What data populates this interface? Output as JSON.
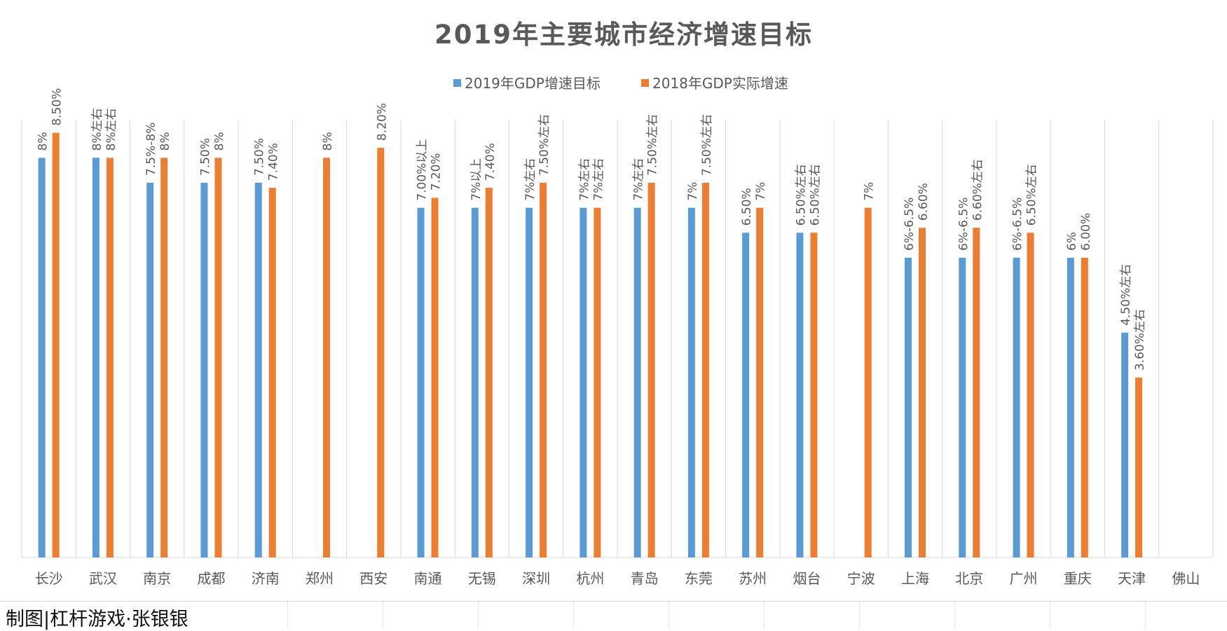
{
  "chart_data": {
    "type": "bar",
    "title": "2019年主要城市经济增速目标",
    "categories": [
      "长沙",
      "武汉",
      "南京",
      "成都",
      "济南",
      "郑州",
      "西安",
      "南通",
      "无锡",
      "深圳",
      "杭州",
      "青岛",
      "东莞",
      "苏州",
      "烟台",
      "宁波",
      "上海",
      "北京",
      "广州",
      "重庆",
      "天津",
      "佛山"
    ],
    "series": [
      {
        "name": "2019年GDP增速目标",
        "color": "#5B9BD5",
        "values": [
          8,
          8,
          7.5,
          7.5,
          7.5,
          null,
          null,
          7,
          7,
          7,
          7,
          7,
          7,
          6.5,
          6.5,
          null,
          6,
          6,
          6,
          6,
          4.5,
          null
        ],
        "labels": [
          "8%",
          "8%左右",
          "7.5%-8%",
          "7.50%",
          "7.50%",
          "",
          "",
          "7.00%以上",
          "7%以上",
          "7%左右",
          "7%左右",
          "7%左右",
          "7%",
          "6.50%",
          "6.50%左右",
          "",
          "6%-6.5%",
          "6%-6.5%",
          "6%-6.5%",
          "6%",
          "4.50%左右",
          ""
        ]
      },
      {
        "name": "2018年GDP实际增速",
        "color": "#ED7D31",
        "values": [
          8.5,
          8,
          8,
          8,
          7.4,
          8,
          8.2,
          7.2,
          7.4,
          7.5,
          7,
          7.5,
          7.5,
          7,
          6.5,
          7,
          6.6,
          6.6,
          6.5,
          6,
          3.6,
          null
        ],
        "labels": [
          "8.50%",
          "8%左右",
          "8%",
          "8%",
          "7.40%",
          "8%",
          "8.20%",
          "7.20%",
          "7.40%",
          "7.50%左右",
          "7%左右",
          "7.50%左右",
          "7.50%左右",
          "7%",
          "6.50%左右",
          "7%",
          "6.60%",
          "6.60%左右",
          "6.50%左右",
          "6.00%",
          "3.60%左右",
          ""
        ]
      }
    ],
    "ylim": [
      0,
      9
    ],
    "grid": "vertical",
    "legend": "top-center"
  },
  "footer": {
    "credit": "制图|杠杆游戏·张银银"
  }
}
